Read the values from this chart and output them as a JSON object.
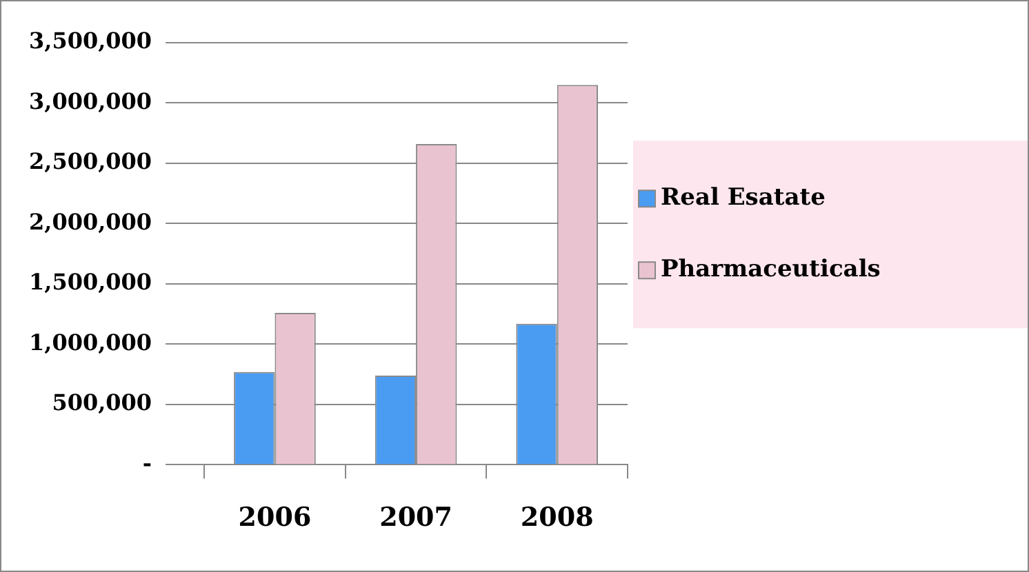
{
  "chart_data": {
    "type": "bar",
    "categories": [
      "2006",
      "2007",
      "2008"
    ],
    "series": [
      {
        "name": "Real Esatate",
        "color": "#4a9cf2",
        "values": [
          770000,
          740000,
          1170000
        ]
      },
      {
        "name": "Pharmaceuticals",
        "color": "#eac3d0",
        "values": [
          1260000,
          2660000,
          3150000
        ]
      }
    ],
    "ylim": [
      0,
      3500000
    ],
    "yticks": [
      {
        "value": 0,
        "label": "-"
      },
      {
        "value": 500000,
        "label": "500,000"
      },
      {
        "value": 1000000,
        "label": "1,000,000"
      },
      {
        "value": 1500000,
        "label": "1,500,000"
      },
      {
        "value": 2000000,
        "label": "2,000,000"
      },
      {
        "value": 2500000,
        "label": "2,500,000"
      },
      {
        "value": 3000000,
        "label": "3,000,000"
      },
      {
        "value": 3500000,
        "label": "3,500,000"
      }
    ],
    "grid": "y",
    "legend": "right"
  }
}
